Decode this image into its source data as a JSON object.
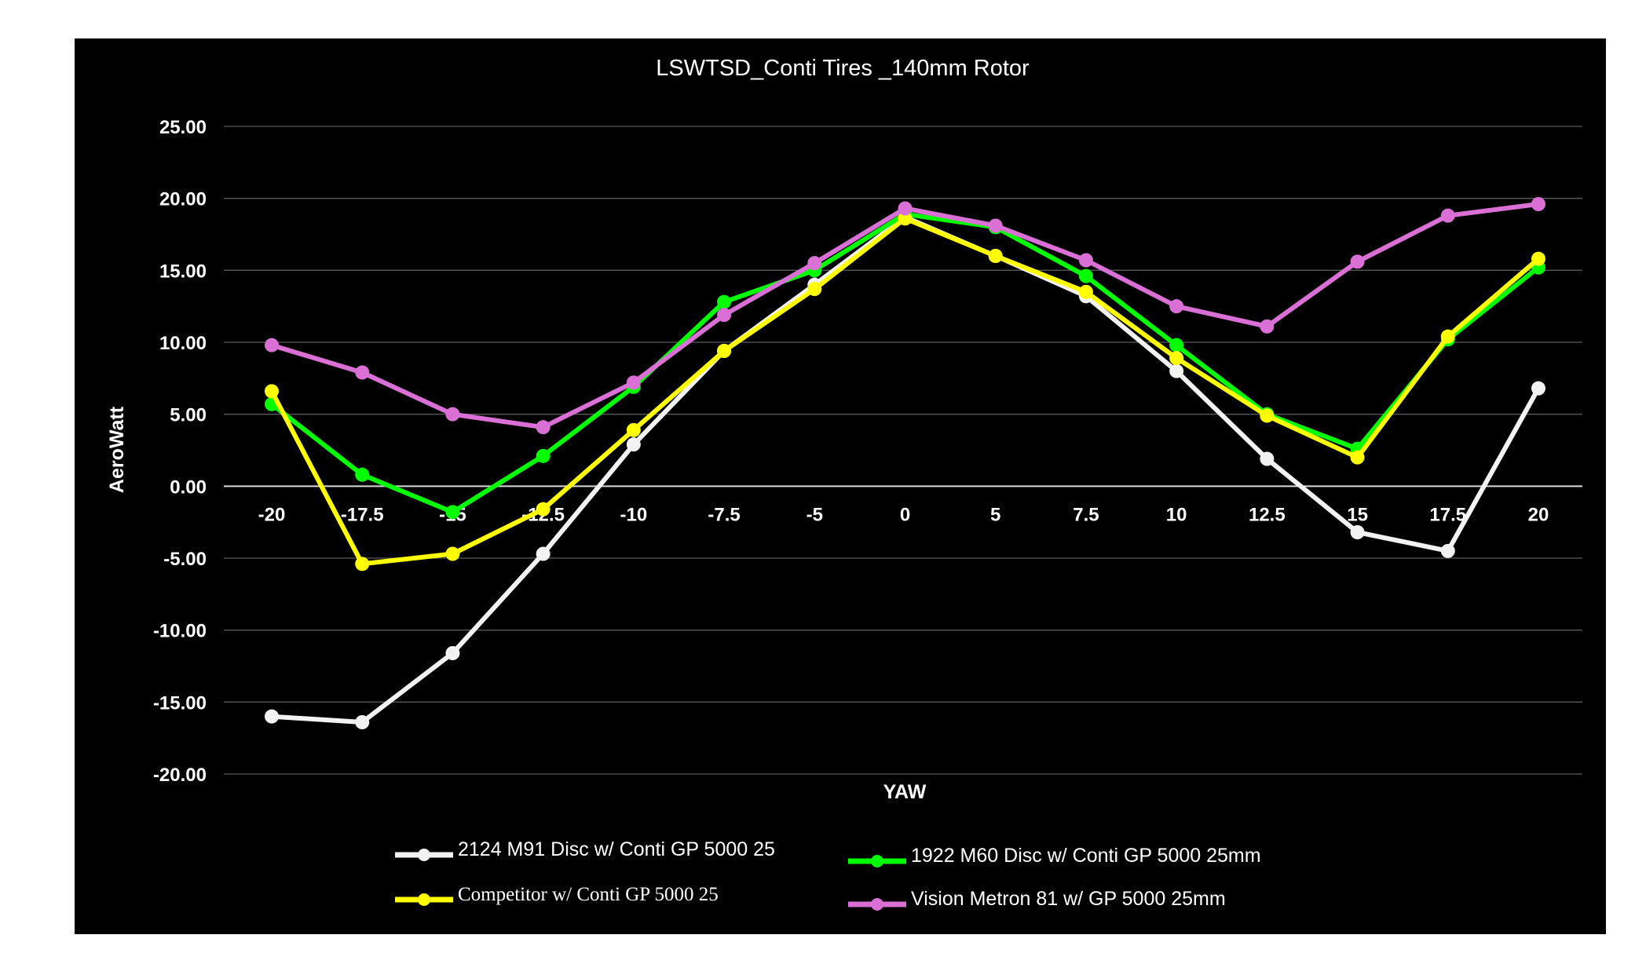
{
  "chart_data": {
    "type": "line",
    "title": "LSWTSD_Conti Tires _140mm Rotor",
    "xlabel": "YAW",
    "ylabel": "AeroWatt",
    "categories": [
      "-20",
      "-17.5",
      "-15",
      "-12.5",
      "-10",
      "-7.5",
      "-5",
      "0",
      "5",
      "7.5",
      "10",
      "12.5",
      "15",
      "17.5",
      "20"
    ],
    "ylim": [
      -20,
      25
    ],
    "yticks": [
      "25.00",
      "20.00",
      "15.00",
      "10.00",
      "5.00",
      "0.00",
      "-5.00",
      "-10.00",
      "-15.00",
      "-20.00"
    ],
    "grid": true,
    "legend_position": "bottom",
    "series": [
      {
        "name": "2124 M91 Disc w/ Conti GP 5000 25",
        "color": "#f2f2f2",
        "values": [
          -16.0,
          -16.4,
          -11.6,
          -4.7,
          2.9,
          9.4,
          14.0,
          18.7,
          16.0,
          13.2,
          8.0,
          1.9,
          -3.2,
          -4.5,
          6.8
        ]
      },
      {
        "name": "1922 M60 Disc w/ Conti GP 5000 25mm",
        "color": "#00ff00",
        "values": [
          5.7,
          0.8,
          -1.8,
          2.1,
          6.9,
          12.8,
          15.0,
          18.9,
          18.0,
          14.6,
          9.8,
          5.0,
          2.6,
          10.2,
          15.2
        ]
      },
      {
        "name": "Competitor  w/ Conti GP 5000 25",
        "color": "#ffff00",
        "values": [
          6.6,
          -5.4,
          -4.7,
          -1.6,
          3.9,
          9.4,
          13.7,
          18.6,
          16.0,
          13.5,
          8.9,
          4.9,
          2.0,
          10.4,
          15.8
        ]
      },
      {
        "name": "Vision Metron 81 w/ GP 5000 25mm",
        "color": "#da70d6",
        "values": [
          9.8,
          7.9,
          5.0,
          4.1,
          7.2,
          11.9,
          15.5,
          19.3,
          18.1,
          15.7,
          12.5,
          11.1,
          15.6,
          18.8,
          19.6
        ]
      }
    ]
  }
}
